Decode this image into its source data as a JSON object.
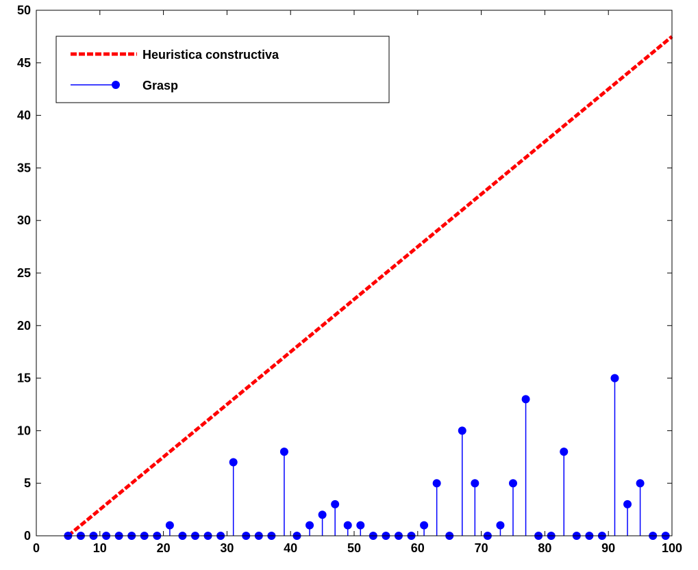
{
  "chart_data": {
    "type": "line",
    "title": "",
    "xlabel": "",
    "ylabel": "",
    "xlim": [
      0,
      100
    ],
    "ylim": [
      0,
      50
    ],
    "xticks": [
      0,
      10,
      20,
      30,
      40,
      50,
      60,
      70,
      80,
      90,
      100
    ],
    "yticks": [
      0,
      5,
      10,
      15,
      20,
      25,
      30,
      35,
      40,
      45,
      50
    ],
    "grid": false,
    "legend_position": "top-left",
    "series": [
      {
        "name": "Heuristica constructiva",
        "kind": "line",
        "style": "dashed",
        "color": "#ff0000",
        "x": [
          5,
          100
        ],
        "y": [
          0,
          47.5
        ]
      },
      {
        "name": "Grasp",
        "kind": "stem",
        "color": "#0000ff",
        "x": [
          5,
          7,
          9,
          11,
          13,
          15,
          17,
          19,
          21,
          23,
          25,
          27,
          29,
          31,
          33,
          35,
          37,
          39,
          41,
          43,
          45,
          47,
          49,
          51,
          53,
          55,
          57,
          59,
          61,
          63,
          65,
          67,
          69,
          71,
          73,
          75,
          77,
          79,
          81,
          83,
          85,
          87,
          89,
          91,
          93,
          95,
          97,
          99
        ],
        "y": [
          0,
          0,
          0,
          0,
          0,
          0,
          0,
          0,
          1,
          0,
          0,
          0,
          0,
          7,
          0,
          0,
          0,
          8,
          0,
          1,
          2,
          3,
          1,
          1,
          0,
          0,
          0,
          0,
          1,
          5,
          0,
          10,
          5,
          0,
          1,
          5,
          13,
          0,
          0,
          8,
          0,
          0,
          0,
          15,
          3,
          5,
          0,
          0
        ]
      }
    ]
  }
}
